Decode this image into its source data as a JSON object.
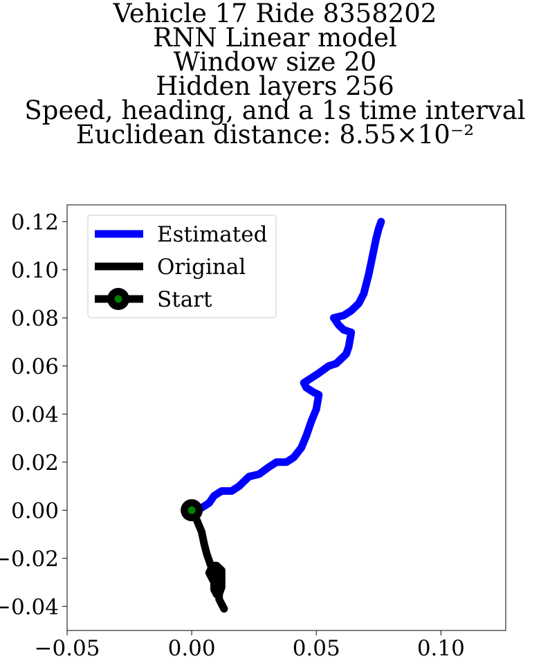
{
  "chart_data": {
    "type": "line",
    "title_lines": [
      "Vehicle 17 Ride 8358202",
      "RNN Linear model",
      "Window size 20",
      "Hidden layers 256",
      "Speed, heading, and a 1s time interval",
      "Euclidean distance: 8.55×10⁻²"
    ],
    "xlabel": "",
    "ylabel": "",
    "xlim": [
      -0.05,
      0.126
    ],
    "ylim": [
      -0.05,
      0.127
    ],
    "xticks": [
      -0.05,
      0.0,
      0.05,
      0.1
    ],
    "xtick_labels": [
      "−0.05",
      "0.00",
      "0.05",
      "0.10"
    ],
    "yticks": [
      -0.04,
      -0.02,
      0.0,
      0.02,
      0.04,
      0.06,
      0.08,
      0.1,
      0.12
    ],
    "ytick_labels": [
      "−0.04",
      "−0.02",
      "0.00",
      "0.02",
      "0.04",
      "0.06",
      "0.08",
      "0.10",
      "0.12"
    ],
    "grid": false,
    "legend_position": "upper left",
    "series": [
      {
        "name": "Estimated",
        "color": "#0000ff",
        "points": [
          [
            0.0,
            0.0
          ],
          [
            0.004,
            0.001
          ],
          [
            0.007,
            0.003
          ],
          [
            0.009,
            0.006
          ],
          [
            0.012,
            0.008
          ],
          [
            0.016,
            0.008
          ],
          [
            0.019,
            0.01
          ],
          [
            0.023,
            0.014
          ],
          [
            0.027,
            0.015
          ],
          [
            0.031,
            0.018
          ],
          [
            0.034,
            0.02
          ],
          [
            0.038,
            0.02
          ],
          [
            0.041,
            0.022
          ],
          [
            0.044,
            0.026
          ],
          [
            0.046,
            0.031
          ],
          [
            0.048,
            0.037
          ],
          [
            0.05,
            0.042
          ],
          [
            0.051,
            0.048
          ],
          [
            0.049,
            0.049
          ],
          [
            0.046,
            0.051
          ],
          [
            0.045,
            0.053
          ],
          [
            0.048,
            0.055
          ],
          [
            0.051,
            0.057
          ],
          [
            0.055,
            0.06
          ],
          [
            0.058,
            0.061
          ],
          [
            0.06,
            0.063
          ],
          [
            0.062,
            0.065
          ],
          [
            0.063,
            0.068
          ],
          [
            0.064,
            0.074
          ],
          [
            0.061,
            0.075
          ],
          [
            0.059,
            0.077
          ],
          [
            0.057,
            0.08
          ],
          [
            0.061,
            0.081
          ],
          [
            0.064,
            0.083
          ],
          [
            0.067,
            0.086
          ],
          [
            0.069,
            0.09
          ],
          [
            0.07,
            0.094
          ],
          [
            0.071,
            0.098
          ],
          [
            0.072,
            0.103
          ],
          [
            0.073,
            0.108
          ],
          [
            0.074,
            0.113
          ],
          [
            0.075,
            0.117
          ],
          [
            0.076,
            0.12
          ]
        ]
      },
      {
        "name": "Original",
        "color": "#000000",
        "points": [
          [
            0.0,
            0.0
          ],
          [
            0.002,
            -0.004
          ],
          [
            0.004,
            -0.009
          ],
          [
            0.005,
            -0.014
          ],
          [
            0.006,
            -0.018
          ],
          [
            0.007,
            -0.021
          ],
          [
            0.008,
            -0.024
          ],
          [
            0.007,
            -0.026
          ],
          [
            0.008,
            -0.028
          ],
          [
            0.009,
            -0.03
          ],
          [
            0.009,
            -0.033
          ],
          [
            0.01,
            -0.035
          ],
          [
            0.011,
            -0.033
          ],
          [
            0.011,
            -0.029
          ],
          [
            0.012,
            -0.026
          ],
          [
            0.011,
            -0.024
          ],
          [
            0.01,
            -0.023
          ],
          [
            0.009,
            -0.024
          ],
          [
            0.009,
            -0.027
          ],
          [
            0.008,
            -0.025
          ],
          [
            0.008,
            -0.023
          ],
          [
            0.01,
            -0.023
          ],
          [
            0.012,
            -0.025
          ],
          [
            0.012,
            -0.028
          ],
          [
            0.012,
            -0.03
          ],
          [
            0.012,
            -0.032
          ],
          [
            0.011,
            -0.035
          ],
          [
            0.011,
            -0.037
          ],
          [
            0.012,
            -0.039
          ],
          [
            0.013,
            -0.041
          ]
        ]
      }
    ],
    "start": {
      "name": "Start",
      "x": 0.0,
      "y": 0.0,
      "marker_color": "#008000",
      "edge_color": "#000000"
    }
  }
}
